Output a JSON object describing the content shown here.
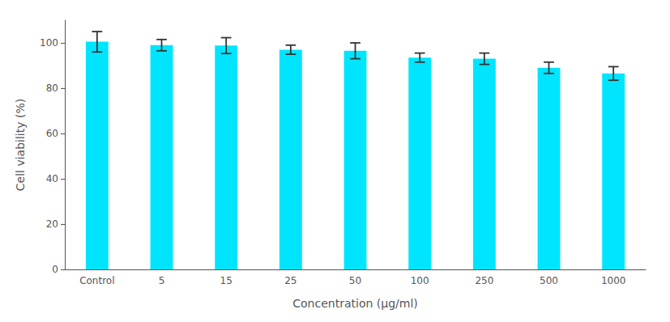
{
  "chart_data": {
    "type": "bar",
    "categories": [
      "Control",
      "5",
      "15",
      "25",
      "50",
      "100",
      "250",
      "500",
      "1000"
    ],
    "values": [
      100.5,
      99.0,
      98.8,
      97.0,
      96.5,
      93.5,
      93.0,
      89.0,
      86.5
    ],
    "errors": [
      4.5,
      2.5,
      3.5,
      2.0,
      3.5,
      2.0,
      2.5,
      2.5,
      3.0
    ],
    "color": "#00E5FF",
    "xlabel": "Concentration (μg/ml)",
    "ylabel": "Cell viability (%)",
    "ylim": [
      0,
      110
    ],
    "yticks": [
      0,
      20,
      40,
      60,
      80,
      100
    ],
    "grid": false
  }
}
